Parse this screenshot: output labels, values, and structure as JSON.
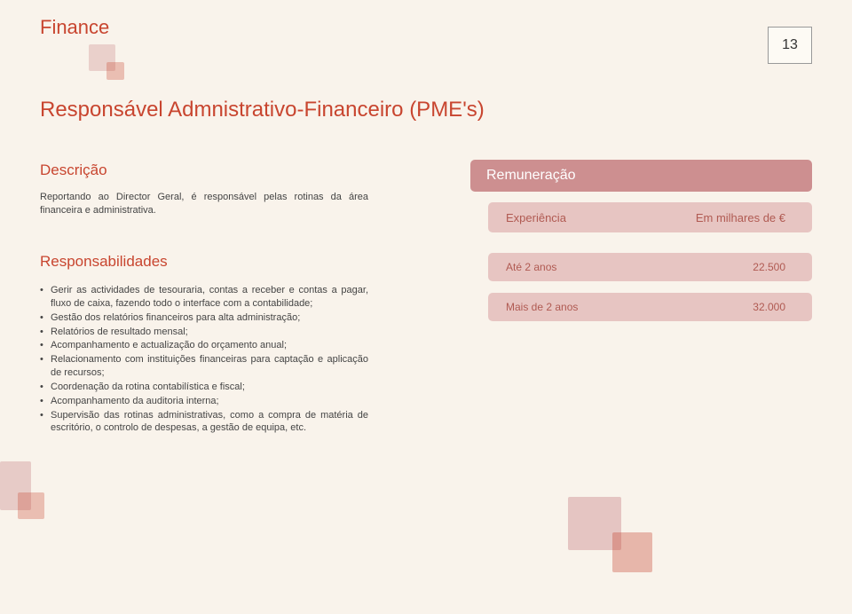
{
  "meta": {
    "category": "Finance",
    "page_number": "13",
    "title": "Responsável Admnistrativo-Financeiro (PME's)"
  },
  "description": {
    "label": "Descrição",
    "text": "Reportando ao Director Geral, é responsável pelas rotinas da área financeira e administrativa."
  },
  "responsibilities": {
    "label": "Responsabilidades",
    "items": [
      "Gerir as actividades de tesouraria, contas a receber e contas a pagar, fluxo de caixa, fazendo todo o interface com a contabilidade;",
      "Gestão dos relatórios financeiros para alta administração;",
      "Relatórios de resultado mensal;",
      "Acompanhamento e actualização do orçamento anual;",
      "Relacionamento com instituições financeiras para captação e aplicação de recursos;",
      "Coordenação da rotina contabilística e fiscal;",
      "Acompanhamento da auditoria interna;",
      "Supervisão das rotinas administrativas, como a compra de matéria de escritório, o controlo de despesas, a gestão de equipa, etc."
    ]
  },
  "remuneration": {
    "label": "Remuneração",
    "experience_label": "Experiência",
    "unit_label": "Em milhares de €",
    "rows": [
      {
        "exp": "Até 2 anos",
        "value": "22.500"
      },
      {
        "exp": "Mais de 2 anos",
        "value": "32.000"
      }
    ]
  },
  "style": {
    "accent_color": "#c8452f",
    "box_bg": "#cd8f90",
    "box_light_bg": "#e7c5c2",
    "page_bg": "#f9f3eb",
    "text_color": "#555",
    "label_fontsize": 17,
    "body_fontsize": 11,
    "title_fontsize": 24
  }
}
